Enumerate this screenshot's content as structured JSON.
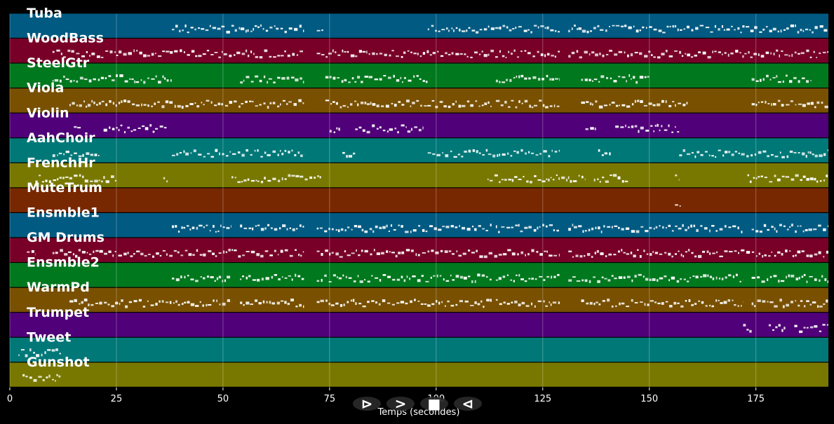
{
  "chart_data": {
    "type": "piano-roll",
    "xlabel": "Temps (secondes)",
    "xlim": [
      0,
      192
    ],
    "xticks": [
      0,
      25,
      50,
      75,
      100,
      125,
      150,
      175
    ],
    "grid": true,
    "tracks": [
      {
        "name": "Tuba",
        "color": "#005a82",
        "segments": [
          [
            38,
            69
          ],
          [
            72,
            73.5
          ],
          [
            98,
            129
          ],
          [
            131,
            192
          ]
        ]
      },
      {
        "name": "WoodBass",
        "color": "#780028",
        "segments": [
          [
            10,
            69
          ],
          [
            72,
            129
          ],
          [
            131,
            192
          ]
        ]
      },
      {
        "name": "SteelGtr",
        "color": "#00781e",
        "segments": [
          [
            10,
            38
          ],
          [
            54,
            69
          ],
          [
            74,
            98
          ],
          [
            114,
            129
          ],
          [
            134,
            150
          ],
          [
            174,
            188
          ]
        ]
      },
      {
        "name": "Viola",
        "color": "#785000",
        "segments": [
          [
            14,
            69
          ],
          [
            74,
            113
          ],
          [
            114,
            129
          ],
          [
            134,
            159
          ],
          [
            174,
            192
          ]
        ]
      },
      {
        "name": "Violin",
        "color": "#500078",
        "segments": [
          [
            15,
            17
          ],
          [
            22,
            37
          ],
          [
            75,
            77.5
          ],
          [
            81,
            97
          ],
          [
            135,
            137.5
          ],
          [
            142,
            157
          ]
        ]
      },
      {
        "name": "AahChoir",
        "color": "#007878",
        "segments": [
          [
            10,
            21
          ],
          [
            38,
            69
          ],
          [
            78,
            81
          ],
          [
            98,
            129
          ],
          [
            138,
            141
          ],
          [
            157,
            192
          ]
        ]
      },
      {
        "name": "FrenchHr",
        "color": "#787800",
        "segments": [
          [
            6,
            25
          ],
          [
            36,
            37
          ],
          [
            52,
            73
          ],
          [
            112,
            135
          ],
          [
            137,
            145
          ],
          [
            156,
            157
          ],
          [
            173,
            192
          ]
        ]
      },
      {
        "name": "MuteTrum",
        "color": "#782800",
        "segments": [
          [
            156,
            157.5
          ]
        ]
      },
      {
        "name": "Ensmble1",
        "color": "#005a82",
        "segments": [
          [
            38,
            52
          ],
          [
            54,
            69
          ],
          [
            72,
            113
          ],
          [
            114,
            129
          ],
          [
            131,
            172
          ],
          [
            174,
            192
          ]
        ]
      },
      {
        "name": "GM Drums",
        "color": "#780028",
        "segments": [
          [
            4,
            6
          ],
          [
            10,
            69
          ],
          [
            72,
            129
          ],
          [
            131,
            192
          ]
        ]
      },
      {
        "name": "Ensmble2",
        "color": "#00781e",
        "segments": [
          [
            38,
            52
          ],
          [
            54,
            69
          ],
          [
            72,
            113
          ],
          [
            114,
            129
          ],
          [
            131,
            172
          ],
          [
            174,
            192
          ]
        ]
      },
      {
        "name": "WarmPd",
        "color": "#785000",
        "segments": [
          [
            14,
            52
          ],
          [
            54,
            69
          ],
          [
            72,
            113
          ],
          [
            114,
            129
          ],
          [
            134,
            172
          ],
          [
            174,
            192
          ]
        ]
      },
      {
        "name": "Trumpet",
        "color": "#500078",
        "segments": [
          [
            172,
            174
          ],
          [
            178,
            182
          ],
          [
            184,
            192
          ]
        ]
      },
      {
        "name": "Tweet",
        "color": "#007878",
        "segments": [
          [
            2,
            12
          ]
        ]
      },
      {
        "name": "Gunshot",
        "color": "#787800",
        "segments": [
          [
            3,
            12
          ]
        ]
      }
    ]
  },
  "controls": [
    {
      "icon": "play-outline-icon",
      "glyph": "⊳"
    },
    {
      "icon": "forward-icon",
      "glyph": ">"
    },
    {
      "icon": "stop-icon",
      "glyph": "■"
    },
    {
      "icon": "rewind-icon",
      "glyph": "⊲"
    }
  ]
}
